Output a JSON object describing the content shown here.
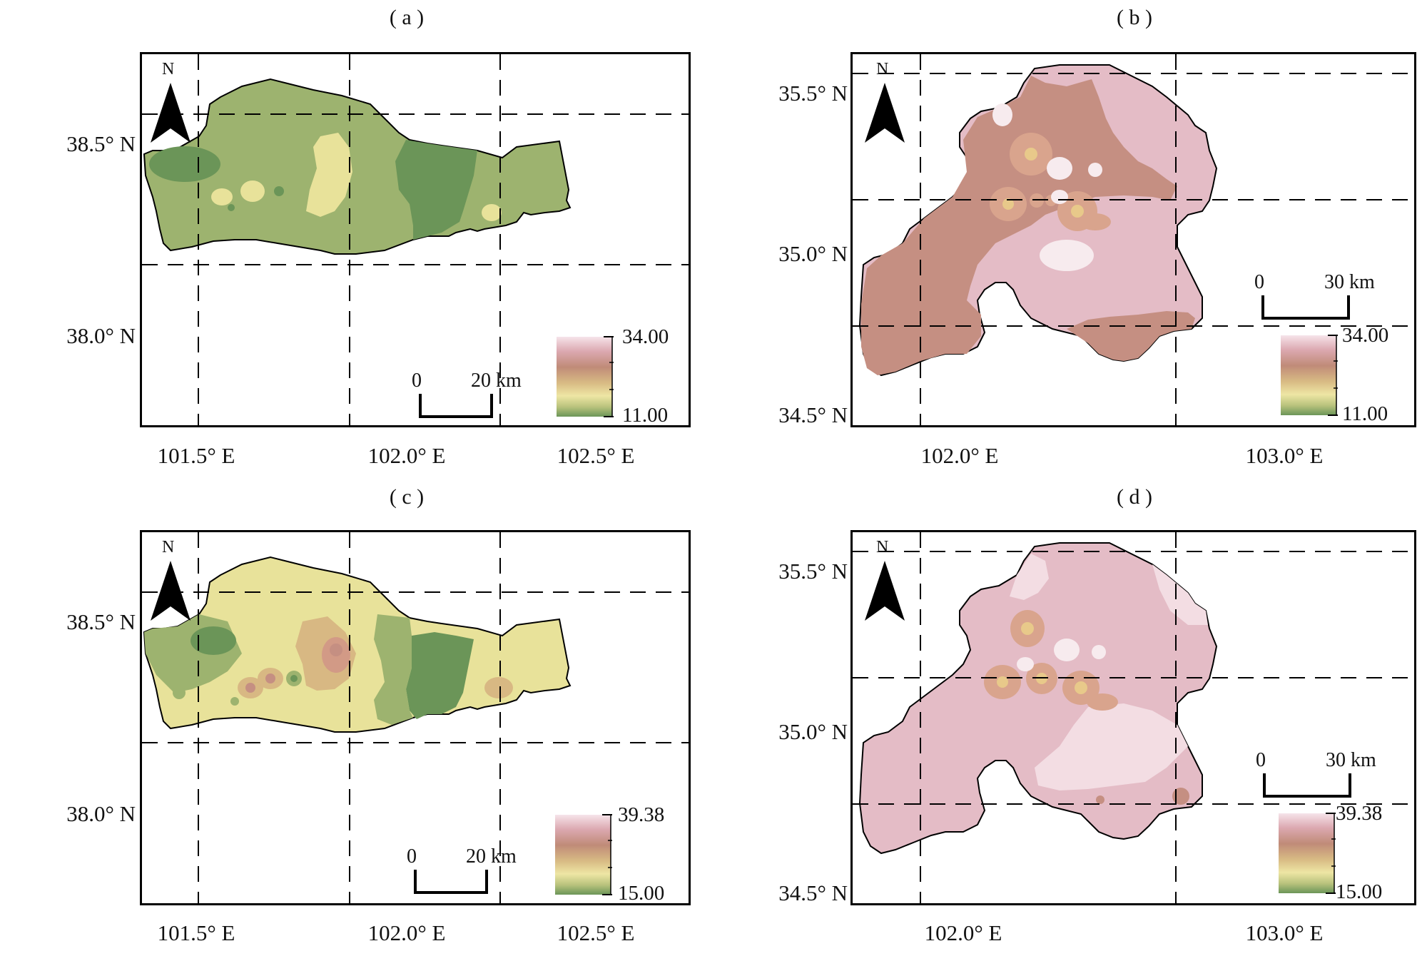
{
  "panels": [
    {
      "id": "a",
      "label": "( a )",
      "lat_ticks": [
        "38.5° N",
        "38.0° N"
      ],
      "lon_ticks": [
        "101.5° E",
        "102.0° E",
        "102.5° E"
      ],
      "legend": {
        "max": "34.00",
        "min": "11.00"
      },
      "scale": {
        "start": "0",
        "end": "20 km"
      },
      "north": "N"
    },
    {
      "id": "b",
      "label": "( b )",
      "lat_ticks": [
        "35.5° N",
        "35.0° N",
        "34.5° N"
      ],
      "lon_ticks": [
        "102.0° E",
        "103.0° E"
      ],
      "legend": {
        "max": "34.00",
        "min": "11.00"
      },
      "scale": {
        "start": "0",
        "end": "30 km"
      },
      "north": "N"
    },
    {
      "id": "c",
      "label": "( c )",
      "lat_ticks": [
        "38.5° N",
        "38.0° N"
      ],
      "lon_ticks": [
        "101.5° E",
        "102.0° E",
        "102.5° E"
      ],
      "legend": {
        "max": "39.38",
        "min": "15.00"
      },
      "scale": {
        "start": "0",
        "end": "20 km"
      },
      "north": "N"
    },
    {
      "id": "d",
      "label": "( d )",
      "lat_ticks": [
        "35.5° N",
        "35.0° N",
        "34.5° N"
      ],
      "lon_ticks": [
        "102.0° E",
        "103.0° E"
      ],
      "legend": {
        "max": "39.38",
        "min": "15.00"
      },
      "scale": {
        "start": "0",
        "end": "30 km"
      },
      "north": "N"
    }
  ],
  "colors": {
    "green_dark": "#6b9558",
    "green_mid": "#9db36f",
    "yellow": "#e8e29a",
    "tan": "#d8b883",
    "brown": "#c58f82",
    "pink": "#e4bcc6",
    "pink_light": "#f3dde3"
  }
}
